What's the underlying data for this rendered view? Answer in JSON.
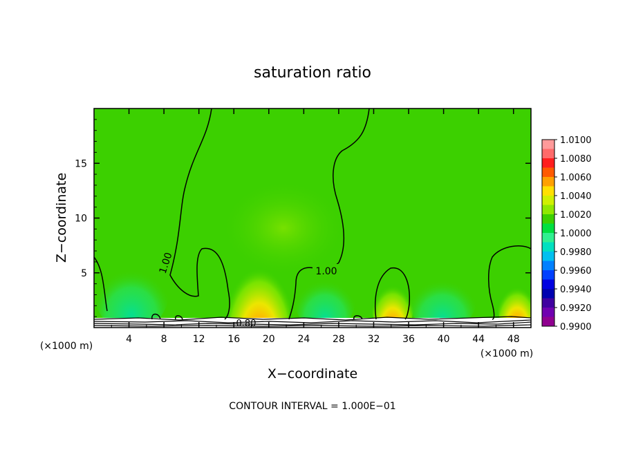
{
  "chart_data": {
    "type": "heatmap",
    "title": "saturation ratio",
    "xlabel": "X−coordinate",
    "ylabel": "Z−coordinate",
    "x_unit_left": "(×1000 m)",
    "x_unit_right": "(×1000 m)",
    "footer": "CONTOUR INTERVAL = 1.000E−01",
    "xlim": [
      0,
      50
    ],
    "ylim": [
      0,
      20
    ],
    "xticks": [
      4,
      8,
      12,
      16,
      20,
      24,
      28,
      32,
      36,
      40,
      44,
      48
    ],
    "yticks": [
      5,
      10,
      15
    ],
    "colorbar": {
      "labels": [
        "1.0100",
        "1.0080",
        "1.0060",
        "1.0040",
        "1.0020",
        "1.0000",
        "0.9980",
        "0.9960",
        "0.9940",
        "0.9920",
        "0.9900"
      ],
      "colors": [
        "#ff9a9a",
        "#ff6a6a",
        "#ff1e1e",
        "#ff5a00",
        "#ffa000",
        "#ffe000",
        "#d0f000",
        "#90e800",
        "#3cd000",
        "#00e040",
        "#30f090",
        "#00e0c0",
        "#00c0f0",
        "#0080ff",
        "#0040ff",
        "#0000e0",
        "#0000b0",
        "#4000a0",
        "#7000b0",
        "#900090"
      ]
    },
    "contour_labels": [
      "1.00",
      "1.00",
      "0.80"
    ]
  }
}
